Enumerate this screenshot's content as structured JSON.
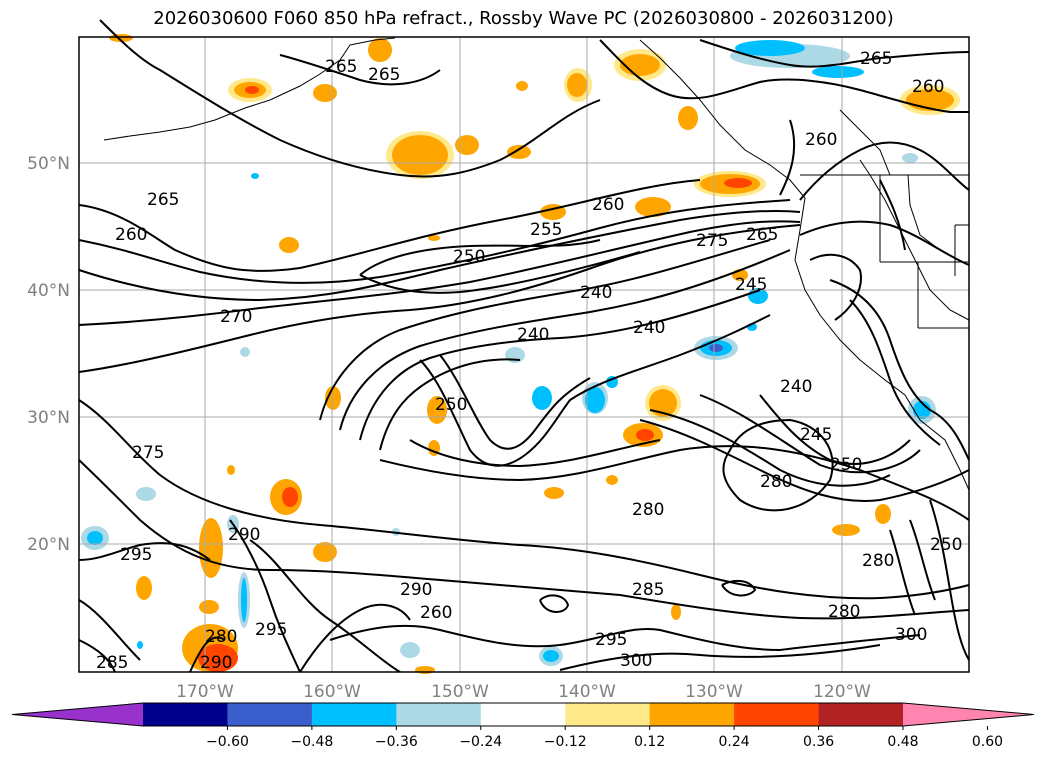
{
  "title": "2026030600 F060 850 hPa refract., Rossby Wave PC (2026030800 - 2026031200)",
  "latitude_labels": [
    "50°N",
    "40°N",
    "30°N",
    "20°N"
  ],
  "longitude_labels": [
    "170°W",
    "160°W",
    "150°W",
    "140°W",
    "130°W",
    "120°W"
  ],
  "contour_labels": [
    "265",
    "265",
    "265",
    "260",
    "260",
    "260",
    "265",
    "255",
    "250",
    "260",
    "270",
    "275",
    "265",
    "245",
    "240",
    "240",
    "240",
    "250",
    "250",
    "240",
    "245",
    "275",
    "295",
    "290",
    "290",
    "295",
    "280",
    "285",
    "280",
    "285",
    "290",
    "295",
    "280",
    "300",
    "280",
    "260",
    "250",
    "300",
    "280"
  ],
  "colorbar": {
    "colors": [
      "#9932cc",
      "#00008b",
      "#3a5fcd",
      "#00bfff",
      "#add8e6",
      "#ffffff",
      "#ffe98a",
      "#ffa500",
      "#ff4500",
      "#b22222",
      "#ff85b0"
    ],
    "tick_labels": [
      "−0.60",
      "−0.48",
      "−0.36",
      "−0.24",
      "−0.12",
      "0.12",
      "0.24",
      "0.36",
      "0.48",
      "0.60"
    ]
  }
}
